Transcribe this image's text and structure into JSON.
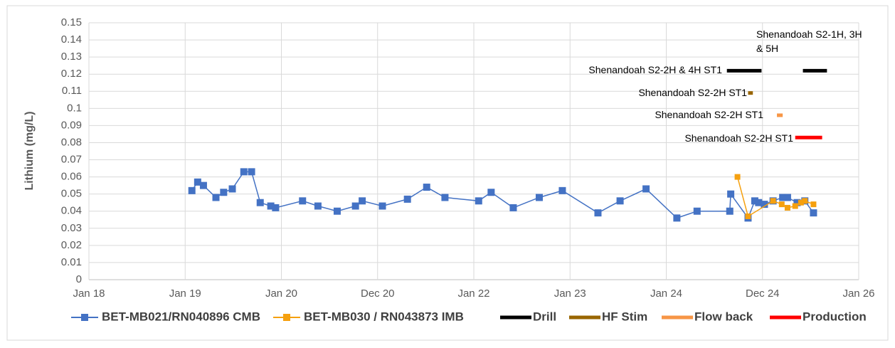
{
  "chart_data": {
    "type": "line",
    "y_label": "Lithium (mg/L)",
    "xlim": [
      2018,
      2026
    ],
    "xticks": [
      {
        "value": 2018,
        "label": "Jan 18"
      },
      {
        "value": 2019,
        "label": "Jan 19"
      },
      {
        "value": 2020,
        "label": "Jan 20"
      },
      {
        "value": 2021,
        "label": "Dec 20"
      },
      {
        "value": 2022,
        "label": "Jan 22"
      },
      {
        "value": 2023,
        "label": "Jan 23"
      },
      {
        "value": 2024,
        "label": "Jan 24"
      },
      {
        "value": 2025,
        "label": "Dec 24"
      },
      {
        "value": 2026,
        "label": "Jan 26"
      }
    ],
    "ylim": [
      0,
      0.15
    ],
    "yticks": [
      0,
      0.01,
      0.02,
      0.03,
      0.04,
      0.05,
      0.06,
      0.07,
      0.08,
      0.09,
      0.1,
      0.11,
      0.12,
      0.13,
      0.14,
      0.15
    ],
    "grid": true,
    "legend": "bottom",
    "series": [
      {
        "name": "BET-MB021/RN040896 CMB",
        "color": "#4472c4",
        "marker": "square",
        "x": [
          2019.07,
          2019.13,
          2019.19,
          2019.32,
          2019.4,
          2019.49,
          2019.61,
          2019.69,
          2019.78,
          2019.89,
          2019.94,
          2020.22,
          2020.38,
          2020.58,
          2020.77,
          2020.84,
          2021.05,
          2021.31,
          2021.51,
          2021.7,
          2022.05,
          2022.18,
          2022.41,
          2022.68,
          2022.92,
          2023.29,
          2023.52,
          2023.79,
          2024.11,
          2024.32,
          2024.66,
          2024.67,
          2024.85,
          2024.92,
          2024.96,
          2025.02,
          2025.11,
          2025.21,
          2025.26,
          2025.36,
          2025.44,
          2025.53
        ],
        "values": [
          0.052,
          0.057,
          0.055,
          0.048,
          0.051,
          0.053,
          0.063,
          0.063,
          0.045,
          0.043,
          0.042,
          0.046,
          0.043,
          0.04,
          0.043,
          0.046,
          0.043,
          0.047,
          0.054,
          0.048,
          0.046,
          0.051,
          0.042,
          0.048,
          0.052,
          0.039,
          0.046,
          0.053,
          0.036,
          0.04,
          0.04,
          0.05,
          0.036,
          0.046,
          0.045,
          0.044,
          0.046,
          0.048,
          0.048,
          0.045,
          0.046,
          0.039
        ]
      },
      {
        "name": "BET-MB030 / RN043873 IMB",
        "color": "#f5a00f",
        "marker": "square",
        "x": [
          2024.74,
          2024.85,
          2025.11,
          2025.2,
          2025.26,
          2025.34,
          2025.4,
          2025.44,
          2025.53
        ],
        "values": [
          0.06,
          0.037,
          0.046,
          0.044,
          0.042,
          0.043,
          0.045,
          0.046,
          0.044
        ]
      },
      {
        "name": "Drill",
        "color": "#000000",
        "marker": "none",
        "x": [
          2024.63,
          2024.99,
          null,
          2025.42,
          2025.67
        ],
        "values": [
          0.122,
          0.122,
          null,
          0.122,
          0.122
        ]
      },
      {
        "name": "HF Stim",
        "color": "#996600",
        "marker": "none",
        "x": [
          2024.85,
          2024.9
        ],
        "values": [
          0.109,
          0.109
        ]
      },
      {
        "name": "Flow back",
        "color": "#f79646",
        "marker": "none",
        "x": [
          2025.15,
          2025.21
        ],
        "values": [
          0.096,
          0.096
        ]
      },
      {
        "name": "Production",
        "color": "#ff0000",
        "marker": "none",
        "x": [
          2025.34,
          2025.62
        ],
        "values": [
          0.083,
          0.083
        ]
      }
    ],
    "annotations": [
      "Shenandoah S2-1H, 3H & 5H",
      "Shenandoah S2-2H & 4H ST1",
      "Shenandoah S2-2H ST1",
      "Shenandoah S2-2H ST1",
      "Shenandoah S2-2H ST1"
    ]
  }
}
